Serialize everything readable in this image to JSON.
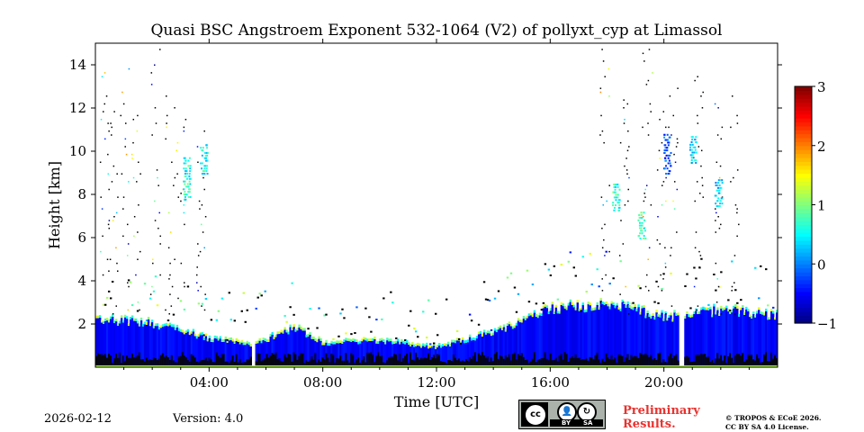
{
  "title": "Quasi BSC Angstroem Exponent 532-1064 (V2) of pollyxt_cyp at Limassol",
  "footer": {
    "date": "2026-02-12",
    "version": "Version: 4.0",
    "license_badge": {
      "cc": "cc",
      "by": "BY",
      "sa": "SA",
      "by_icon": "person-icon",
      "sa_icon": "share-alike-icon"
    },
    "preliminary_line1": "Preliminary",
    "preliminary_line2": "Results.",
    "copyright_line1": "© TROPOS & ECoE 2026.",
    "copyright_line2": "CC BY SA 4.0 License."
  },
  "chart_data": {
    "type": "heatmap",
    "title": "Quasi BSC Angstroem Exponent 532-1064 (V2) of pollyxt_cyp at Limassol",
    "xlabel": "Time [UTC]",
    "ylabel": "Height [km]",
    "xlim_hours": [
      0,
      24
    ],
    "ylim_km": [
      0,
      15
    ],
    "x_ticks": [
      4,
      8,
      12,
      16,
      20
    ],
    "x_tick_labels": [
      "04:00",
      "08:00",
      "12:00",
      "16:00",
      "20:00"
    ],
    "y_ticks": [
      2,
      4,
      6,
      8,
      10,
      12,
      14
    ],
    "y_tick_labels": [
      "2",
      "4",
      "6",
      "8",
      "10",
      "12",
      "14"
    ],
    "colorbar": {
      "min": -1,
      "max": 3,
      "ticks": [
        -1,
        0,
        1,
        2,
        3
      ],
      "tick_labels": [
        "−1",
        "0",
        "1",
        "2",
        "3"
      ],
      "colormap": "jet"
    },
    "description_of_field": {
      "boundary_layer_top_km": [
        [
          0,
          2.2
        ],
        [
          2,
          2.0
        ],
        [
          4,
          1.3
        ],
        [
          5.5,
          1.0
        ],
        [
          7,
          1.8
        ],
        [
          8,
          1.1
        ],
        [
          10,
          1.2
        ],
        [
          12,
          0.9
        ],
        [
          14,
          1.6
        ],
        [
          16,
          2.7
        ],
        [
          18,
          2.9
        ],
        [
          20,
          2.3
        ],
        [
          22,
          2.6
        ],
        [
          24,
          2.4
        ]
      ],
      "dominant_value": -0.5,
      "cirrus_layers": [
        {
          "time_h": 3.2,
          "base_km": 7.8,
          "top_km": 9.8,
          "value": 0.6
        },
        {
          "time_h": 3.8,
          "base_km": 9.0,
          "top_km": 10.4,
          "value": 0.5
        },
        {
          "time_h": 18.3,
          "base_km": 7.3,
          "top_km": 8.5,
          "value": 0.7
        },
        {
          "time_h": 19.2,
          "base_km": 6.0,
          "top_km": 7.3,
          "value": 0.8
        },
        {
          "time_h": 20.1,
          "base_km": 9.0,
          "top_km": 10.8,
          "value": -0.2
        },
        {
          "time_h": 21.0,
          "base_km": 9.5,
          "top_km": 10.8,
          "value": 0.4
        },
        {
          "time_h": 21.9,
          "base_km": 7.5,
          "top_km": 8.8,
          "value": 0.3
        }
      ],
      "data_gaps_hours": [
        [
          5.45,
          5.6
        ],
        [
          20.5,
          20.7
        ]
      ]
    }
  }
}
